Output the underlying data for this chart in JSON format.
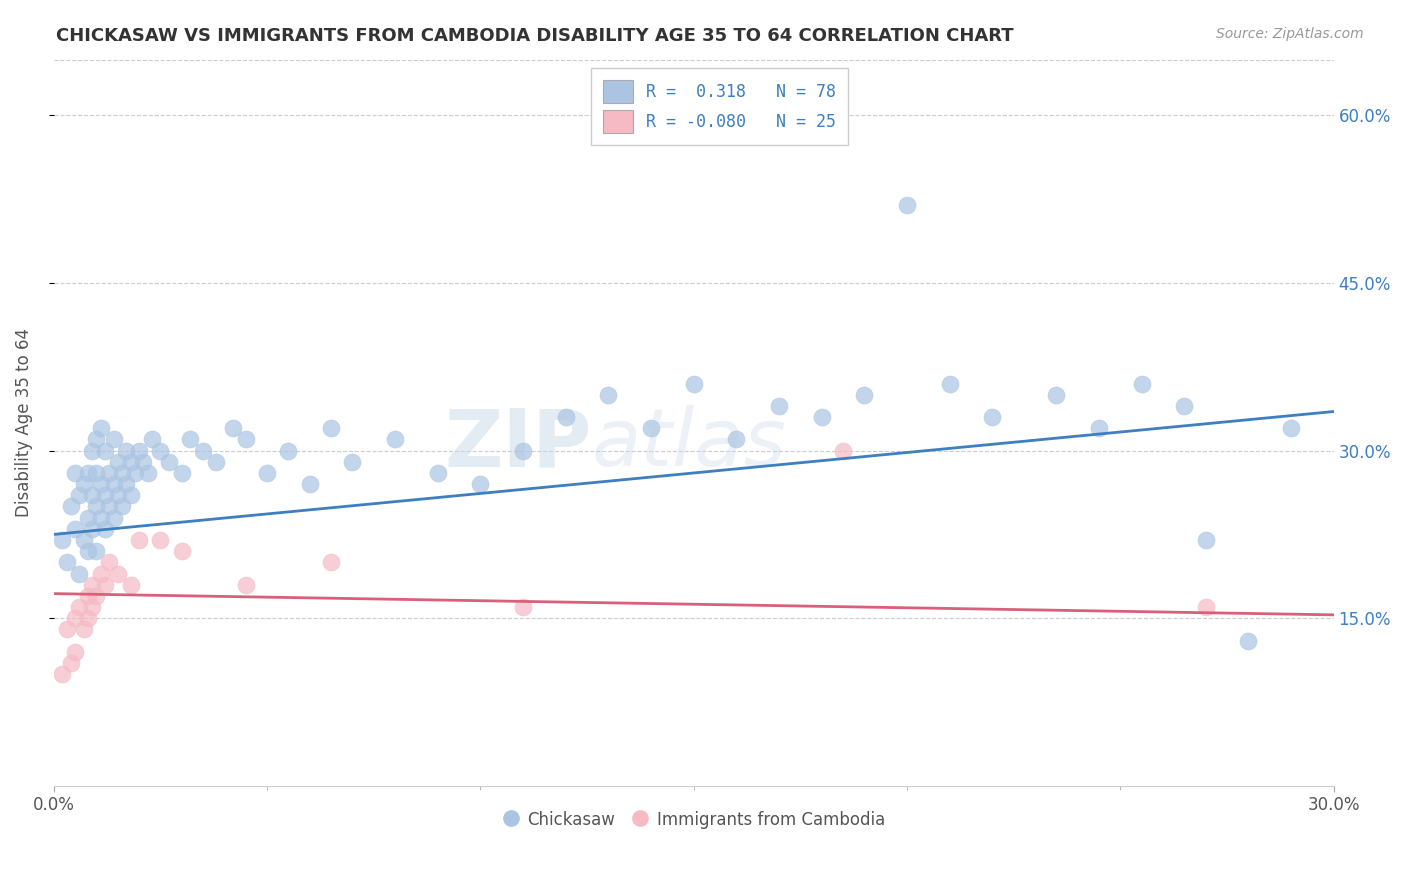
{
  "title": "CHICKASAW VS IMMIGRANTS FROM CAMBODIA DISABILITY AGE 35 TO 64 CORRELATION CHART",
  "source": "Source: ZipAtlas.com",
  "ylabel": "Disability Age 35 to 64",
  "xlim": [
    0.0,
    0.3
  ],
  "ylim": [
    0.0,
    0.65
  ],
  "x_tick_positions": [
    0.0,
    0.3
  ],
  "x_tick_labels": [
    "0.0%",
    "30.0%"
  ],
  "y_ticks_right": [
    0.15,
    0.3,
    0.45,
    0.6
  ],
  "y_tick_labels_right": [
    "15.0%",
    "30.0%",
    "45.0%",
    "60.0%"
  ],
  "blue_R": 0.318,
  "blue_N": 78,
  "pink_R": -0.08,
  "pink_N": 25,
  "blue_color": "#aac4e2",
  "pink_color": "#f5bac4",
  "blue_line_color": "#3d7fc1",
  "pink_line_color": "#d9607a",
  "legend_label_blue": "Chickasaw",
  "legend_label_pink": "Immigrants from Cambodia",
  "watermark_left": "ZIP",
  "watermark_right": "atlas",
  "blue_line_x0": 0.0,
  "blue_line_y0": 0.225,
  "blue_line_x1": 0.3,
  "blue_line_y1": 0.335,
  "pink_line_x0": 0.0,
  "pink_line_y0": 0.172,
  "pink_line_x1": 0.3,
  "pink_line_y1": 0.153,
  "blue_x": [
    0.002,
    0.003,
    0.004,
    0.005,
    0.005,
    0.006,
    0.006,
    0.007,
    0.007,
    0.008,
    0.008,
    0.008,
    0.009,
    0.009,
    0.009,
    0.01,
    0.01,
    0.01,
    0.01,
    0.011,
    0.011,
    0.011,
    0.012,
    0.012,
    0.012,
    0.013,
    0.013,
    0.014,
    0.014,
    0.014,
    0.015,
    0.015,
    0.016,
    0.016,
    0.017,
    0.017,
    0.018,
    0.018,
    0.019,
    0.02,
    0.021,
    0.022,
    0.023,
    0.025,
    0.027,
    0.03,
    0.032,
    0.035,
    0.038,
    0.042,
    0.045,
    0.05,
    0.055,
    0.06,
    0.065,
    0.07,
    0.08,
    0.09,
    0.1,
    0.11,
    0.12,
    0.13,
    0.14,
    0.15,
    0.16,
    0.17,
    0.18,
    0.19,
    0.2,
    0.21,
    0.22,
    0.235,
    0.245,
    0.255,
    0.265,
    0.27,
    0.28,
    0.29
  ],
  "blue_y": [
    0.22,
    0.2,
    0.25,
    0.23,
    0.28,
    0.19,
    0.26,
    0.22,
    0.27,
    0.21,
    0.24,
    0.28,
    0.23,
    0.26,
    0.3,
    0.21,
    0.25,
    0.28,
    0.31,
    0.24,
    0.27,
    0.32,
    0.23,
    0.26,
    0.3,
    0.25,
    0.28,
    0.24,
    0.27,
    0.31,
    0.26,
    0.29,
    0.25,
    0.28,
    0.27,
    0.3,
    0.26,
    0.29,
    0.28,
    0.3,
    0.29,
    0.28,
    0.31,
    0.3,
    0.29,
    0.28,
    0.31,
    0.3,
    0.29,
    0.32,
    0.31,
    0.28,
    0.3,
    0.27,
    0.32,
    0.29,
    0.31,
    0.28,
    0.27,
    0.3,
    0.33,
    0.35,
    0.32,
    0.36,
    0.31,
    0.34,
    0.33,
    0.35,
    0.52,
    0.36,
    0.33,
    0.35,
    0.32,
    0.36,
    0.34,
    0.22,
    0.13,
    0.32
  ],
  "pink_x": [
    0.002,
    0.003,
    0.004,
    0.005,
    0.005,
    0.006,
    0.007,
    0.008,
    0.008,
    0.009,
    0.009,
    0.01,
    0.011,
    0.012,
    0.013,
    0.015,
    0.018,
    0.02,
    0.025,
    0.03,
    0.045,
    0.065,
    0.11,
    0.185,
    0.27
  ],
  "pink_y": [
    0.1,
    0.14,
    0.11,
    0.15,
    0.12,
    0.16,
    0.14,
    0.15,
    0.17,
    0.16,
    0.18,
    0.17,
    0.19,
    0.18,
    0.2,
    0.19,
    0.18,
    0.22,
    0.22,
    0.21,
    0.18,
    0.2,
    0.16,
    0.3,
    0.16
  ]
}
